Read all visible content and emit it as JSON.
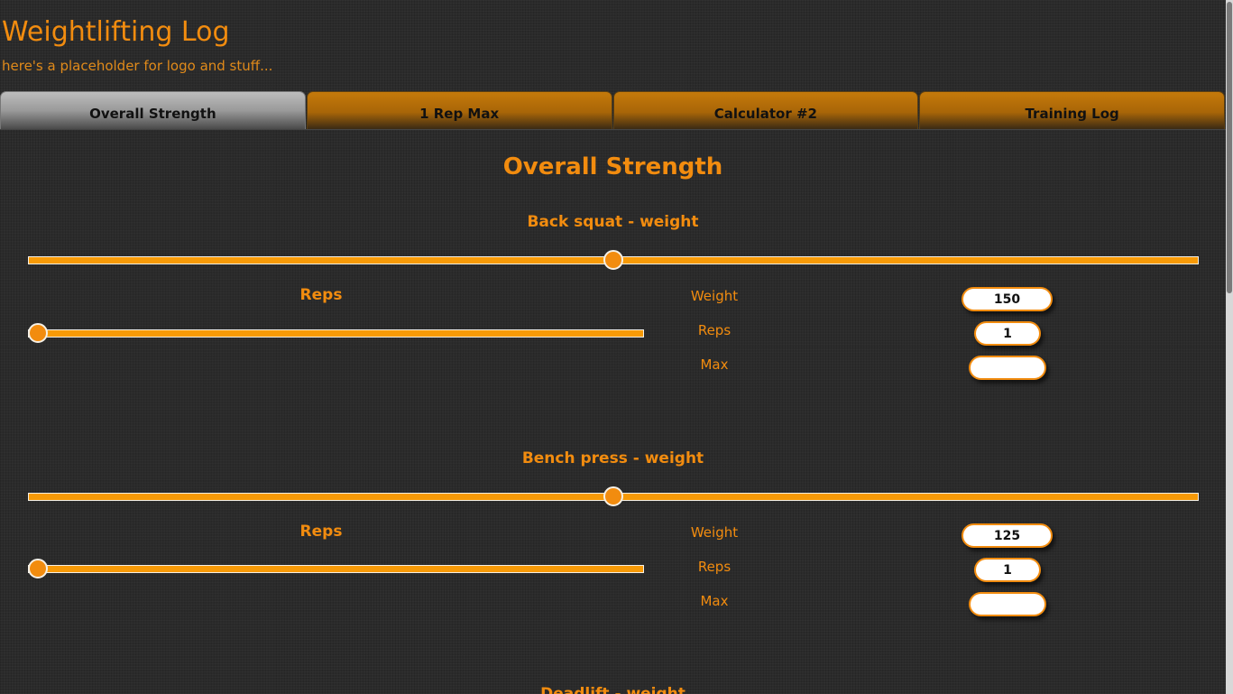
{
  "header": {
    "title": "Weightlifting Log",
    "subtitle": "here's a placeholder for logo and stuff..."
  },
  "tabs": [
    {
      "label": "Overall Strength",
      "active": true
    },
    {
      "label": "1 Rep Max",
      "active": false
    },
    {
      "label": "Calculator #2",
      "active": false
    },
    {
      "label": "Training Log",
      "active": false
    }
  ],
  "main": {
    "title": "Overall Strength",
    "exercises": [
      {
        "label": "Back squat - weight",
        "weight_slider_fraction": 0.5,
        "reps_label": "Reps",
        "reps_slider_fraction": 0.0,
        "fields": {
          "weight_label": "Weight",
          "weight_value": "150",
          "reps_label": "Reps",
          "reps_value": "1",
          "max_label": "Max",
          "max_value": ""
        }
      },
      {
        "label": "Bench press - weight",
        "weight_slider_fraction": 0.5,
        "reps_label": "Reps",
        "reps_slider_fraction": 0.0,
        "fields": {
          "weight_label": "Weight",
          "weight_value": "125",
          "reps_label": "Reps",
          "reps_value": "1",
          "max_label": "Max",
          "max_value": ""
        }
      },
      {
        "label": "Deadlift - weight"
      }
    ]
  },
  "colors": {
    "accent": "#f28c0f",
    "background": "#2b2b2b",
    "tab_active": "#9a9a9a",
    "tab_inactive": "#a86508"
  }
}
